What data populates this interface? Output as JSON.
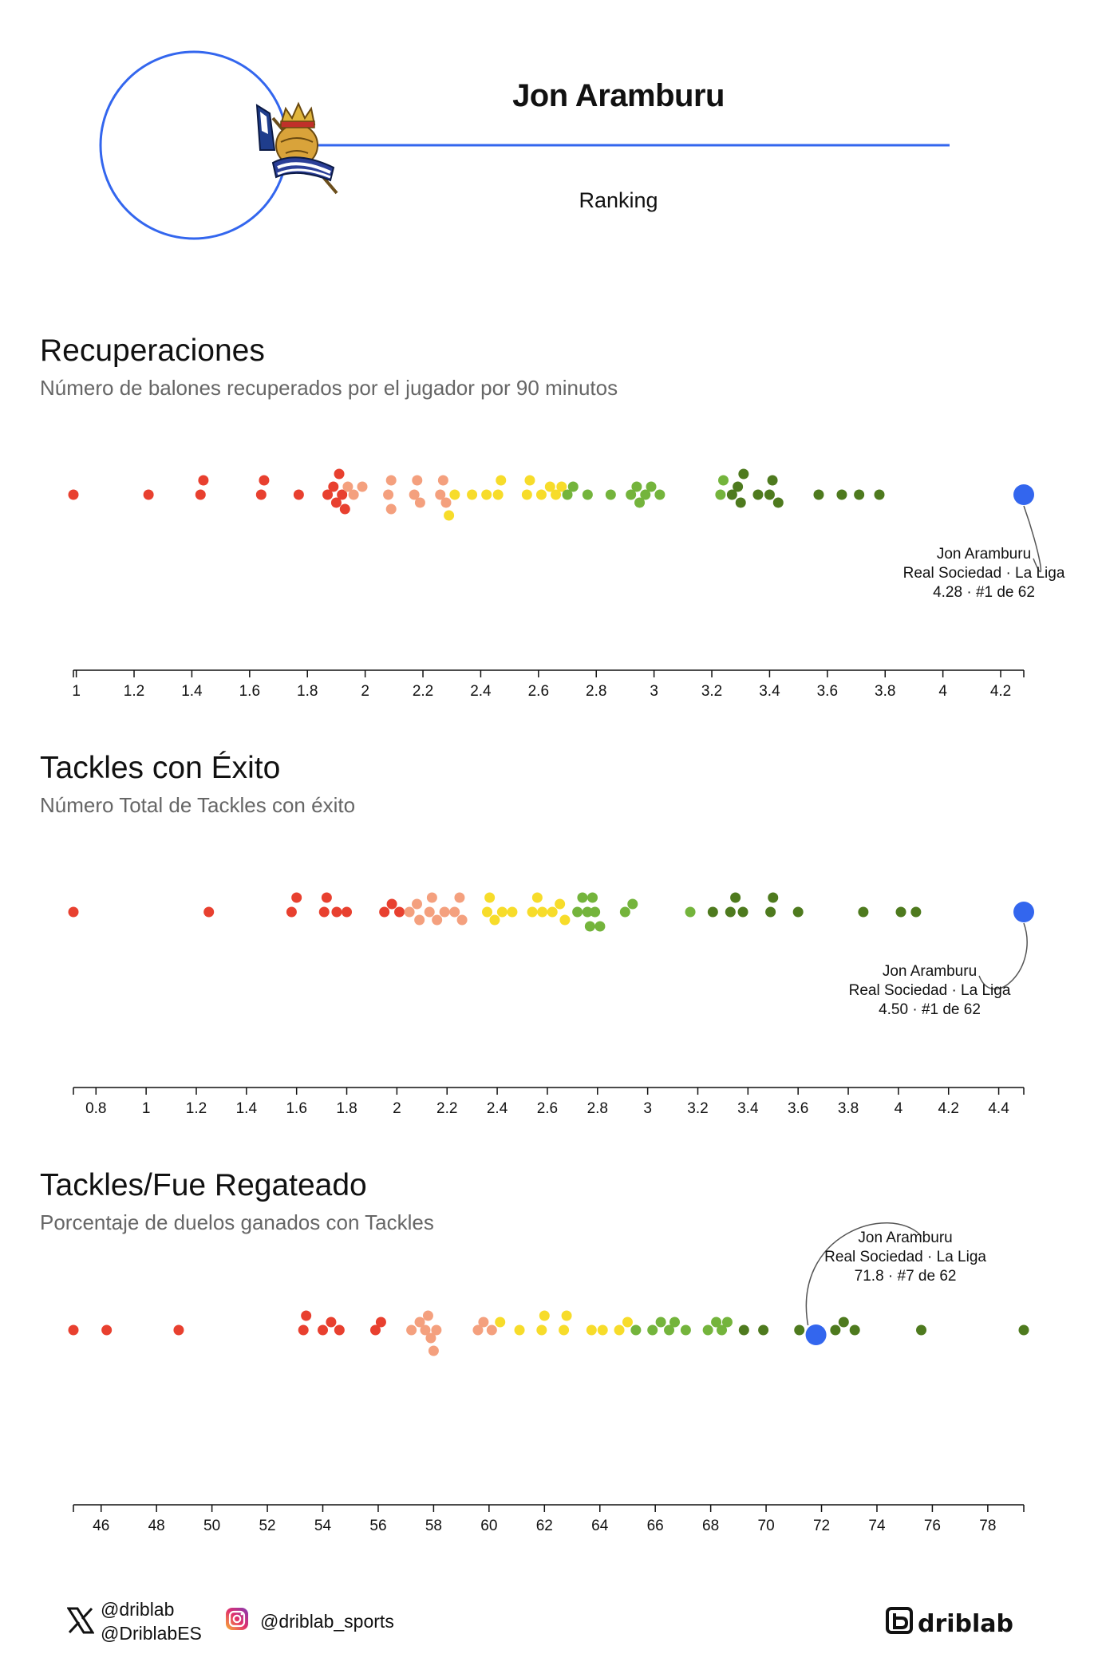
{
  "header": {
    "player_name": "Jon Aramburu",
    "ranking_label": "Ranking",
    "accent_color": "#3366ee",
    "crest_icon": "real-sociedad-crest-icon"
  },
  "charts": [
    {
      "title": "Recuperaciones",
      "subtitle": "Número de balones recuperados por el jugador por 90 minutos",
      "chart_data": {
        "type": "scatter",
        "title": "Recuperaciones",
        "subtitle": "Número de balones recuperados por el jugador por 90 minutos",
        "xlim": [
          0.99,
          4.28
        ],
        "ticks": [
          "1",
          "1.2",
          "1.4",
          "1.6",
          "1.8",
          "2",
          "2.2",
          "2.4",
          "2.6",
          "2.8",
          "3",
          "3.2",
          "3.4",
          "3.6",
          "3.8",
          "4",
          "4.2"
        ],
        "tick_values": [
          1,
          1.2,
          1.4,
          1.6,
          1.8,
          2,
          2.2,
          2.4,
          2.6,
          2.8,
          3,
          3.2,
          3.4,
          3.6,
          3.8,
          4,
          4.2
        ],
        "values": [
          0.99,
          1.25,
          1.43,
          1.44,
          1.65,
          1.64,
          1.77,
          1.87,
          1.89,
          1.9,
          1.91,
          1.92,
          1.94,
          1.93,
          1.96,
          1.99,
          2.08,
          2.09,
          2.09,
          2.17,
          2.18,
          2.19,
          2.26,
          2.27,
          2.28,
          2.29,
          2.31,
          2.37,
          2.42,
          2.46,
          2.47,
          2.56,
          2.57,
          2.61,
          2.64,
          2.66,
          2.68,
          2.7,
          2.72,
          2.77,
          2.85,
          2.92,
          2.94,
          2.95,
          2.97,
          2.99,
          3.02,
          3.23,
          3.24,
          3.27,
          3.29,
          3.3,
          3.31,
          3.36,
          3.4,
          3.41,
          3.43,
          3.57,
          3.65,
          3.71,
          3.78
        ],
        "highlight": {
          "value": 4.28,
          "label": "Jon Aramburu",
          "team": "Real Sociedad · La Liga",
          "rank": "4.28 · #1 de 62"
        }
      }
    },
    {
      "title": "Tackles con Éxito",
      "subtitle": "Número Total de Tackles con éxito",
      "chart_data": {
        "type": "scatter",
        "title": "Tackles con Éxito",
        "subtitle": "Número Total de Tackles con éxito",
        "xlim": [
          0.71,
          4.5
        ],
        "ticks": [
          "0.8",
          "1",
          "1.2",
          "1.4",
          "1.6",
          "1.8",
          "2",
          "2.2",
          "2.4",
          "2.6",
          "2.8",
          "3",
          "3.2",
          "3.4",
          "3.6",
          "3.8",
          "4",
          "4.2",
          "4.4"
        ],
        "tick_values": [
          0.8,
          1,
          1.2,
          1.4,
          1.6,
          1.8,
          2,
          2.2,
          2.4,
          2.6,
          2.8,
          3,
          3.2,
          3.4,
          3.6,
          3.8,
          4,
          4.2,
          4.4
        ],
        "values": [
          0.71,
          1.25,
          1.58,
          1.6,
          1.71,
          1.72,
          1.76,
          1.8,
          1.95,
          1.98,
          2.01,
          2.05,
          2.08,
          2.09,
          2.13,
          2.14,
          2.16,
          2.19,
          2.23,
          2.25,
          2.26,
          2.36,
          2.37,
          2.39,
          2.42,
          2.46,
          2.54,
          2.56,
          2.58,
          2.62,
          2.65,
          2.67,
          2.72,
          2.74,
          2.76,
          2.77,
          2.78,
          2.79,
          2.81,
          2.91,
          2.94,
          3.17,
          3.26,
          3.33,
          3.35,
          3.38,
          3.49,
          3.5,
          3.6,
          3.86,
          4.01,
          4.07
        ],
        "highlight": {
          "value": 4.5,
          "label": "Jon Aramburu",
          "team": "Real Sociedad · La Liga",
          "rank": "4.50 · #1 de 62"
        }
      }
    },
    {
      "title": "Tackles/Fue Regateado",
      "subtitle": "Porcentaje de duelos ganados con Tackles",
      "chart_data": {
        "type": "scatter",
        "title": "Tackles/Fue Regateado",
        "subtitle": "Porcentaje de duelos ganados con Tackles",
        "xlim": [
          45.0,
          79.3
        ],
        "ticks": [
          "46",
          "48",
          "50",
          "52",
          "54",
          "56",
          "58",
          "60",
          "62",
          "64",
          "66",
          "68",
          "70",
          "72",
          "74",
          "76",
          "78"
        ],
        "tick_values": [
          46,
          48,
          50,
          52,
          54,
          56,
          58,
          60,
          62,
          64,
          66,
          68,
          70,
          72,
          74,
          76,
          78
        ],
        "values": [
          45.0,
          46.2,
          48.8,
          53.3,
          53.4,
          54.0,
          54.3,
          54.6,
          55.9,
          56.1,
          57.2,
          57.5,
          57.7,
          57.8,
          57.9,
          58.0,
          58.1,
          59.6,
          59.8,
          60.1,
          60.4,
          61.1,
          61.9,
          62.0,
          62.7,
          62.8,
          63.7,
          64.1,
          64.7,
          65.0,
          65.3,
          65.9,
          66.2,
          66.5,
          66.7,
          67.1,
          67.9,
          68.2,
          68.4,
          68.6,
          69.2,
          69.9,
          71.2,
          71.8,
          72.5,
          72.8,
          73.2,
          75.6,
          79.3
        ],
        "highlight": {
          "value": 71.8,
          "label": "Jon Aramburu",
          "team": "Real Sociedad · La Liga",
          "rank": "71.8 · #7 de 62"
        }
      }
    }
  ],
  "palette": [
    "#e8402f",
    "#f4a07e",
    "#f7dc2a",
    "#74b43c",
    "#4e7a1e"
  ],
  "highlight_color": "#3366ee",
  "footer": {
    "x_handle_1": "@driblab",
    "x_handle_2": "@DriblabES",
    "instagram_handle": "@driblab_sports",
    "brand": "driblab",
    "x_icon": "x-logo-icon",
    "instagram_icon": "instagram-icon"
  }
}
